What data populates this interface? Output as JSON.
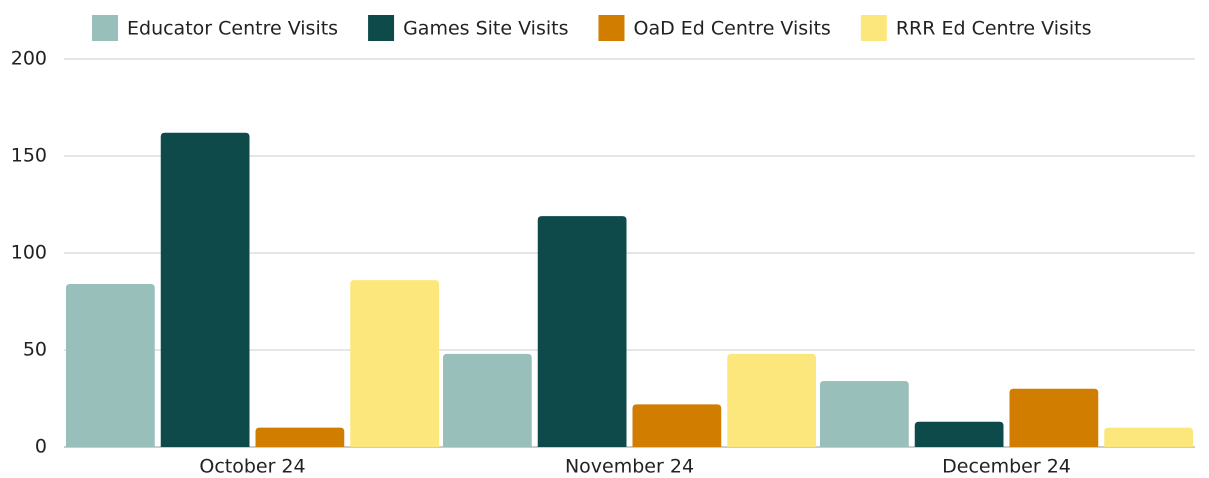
{
  "chart_data": {
    "type": "bar",
    "categories": [
      "October 24",
      "November 24",
      "December 24"
    ],
    "series": [
      {
        "name": "Educator Centre Visits",
        "color": "#98bfb9",
        "values": [
          84,
          48,
          34
        ]
      },
      {
        "name": "Games Site Visits",
        "color": "#0f4a4a",
        "values": [
          162,
          119,
          13
        ]
      },
      {
        "name": "OaD Ed Centre Visits",
        "color": "#d17e00",
        "values": [
          10,
          22,
          30
        ]
      },
      {
        "name": "RRR Ed Centre Visits",
        "color": "#fbe77c",
        "values": [
          86,
          48,
          10
        ]
      }
    ],
    "ylim": [
      0,
      200
    ],
    "yticks": [
      0,
      50,
      100,
      150,
      200
    ],
    "grid": true,
    "legend": "top"
  }
}
